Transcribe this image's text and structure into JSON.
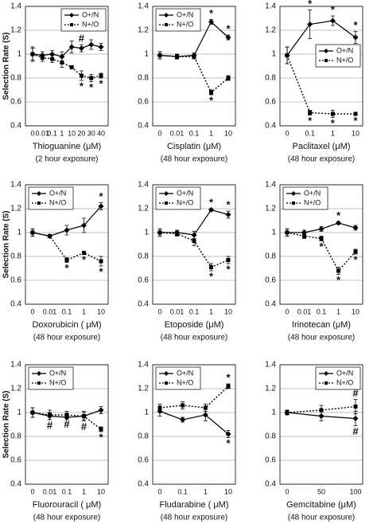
{
  "chart_data": [
    {
      "type": "line",
      "ylabel": "Selection Rate (S)",
      "xlabel": "Thioguanine (μM)",
      "subtitle": "(2 hour exposure)",
      "categories": [
        "0",
        "0.01",
        "0.1",
        "1",
        "10",
        "20",
        "30",
        "40"
      ],
      "ylim": [
        0.4,
        1.4
      ],
      "yticks": [
        0.4,
        0.6,
        0.8,
        1,
        1.2,
        1.4
      ],
      "grid": true,
      "legend": "upper right",
      "series": [
        {
          "name": "O+/N",
          "color": "#000000",
          "values": [
            1.0,
            0.99,
            1.0,
            0.98,
            1.06,
            1.05,
            1.08,
            1.06
          ],
          "errors": [
            0.06,
            0.03,
            0.03,
            0.04,
            0.05,
            0.03,
            0.04,
            0.03
          ],
          "flags": [
            null,
            null,
            null,
            null,
            null,
            "#",
            null,
            null
          ]
        },
        {
          "name": "N+/O",
          "color": "#000000",
          "values": [
            1.0,
            0.97,
            0.96,
            0.93,
            0.89,
            0.82,
            0.8,
            0.82
          ],
          "errors": [
            0.05,
            0.03,
            0.03,
            0.04,
            0.01,
            0.04,
            0.03,
            0.02
          ],
          "flags": [
            null,
            null,
            null,
            null,
            null,
            "*",
            "*",
            "*"
          ]
        }
      ]
    },
    {
      "type": "line",
      "xlabel": "Cisplatin (μM)",
      "subtitle": "(48 hour exposure)",
      "categories": [
        "0",
        "0.01",
        "0.1",
        "1",
        "10"
      ],
      "ylim": [
        0.4,
        1.4
      ],
      "yticks": [
        0.4,
        0.6,
        0.8,
        1,
        1.2,
        1.4
      ],
      "grid": true,
      "legend": "upper left",
      "series": [
        {
          "name": "O+/N",
          "color": "#000000",
          "values": [
            0.99,
            0.98,
            0.99,
            1.27,
            1.14
          ],
          "errors": [
            0.03,
            0.02,
            0.02,
            0.02,
            0.02
          ],
          "flags": [
            null,
            null,
            null,
            "*",
            "*"
          ]
        },
        {
          "name": "N+/O",
          "color": "#000000",
          "values": [
            0.99,
            0.98,
            0.98,
            0.68,
            0.8
          ],
          "errors": [
            0.03,
            0.02,
            0.02,
            0.02,
            0.02
          ],
          "flags": [
            null,
            null,
            null,
            "*",
            null
          ]
        }
      ]
    },
    {
      "type": "line",
      "xlabel": "Paclitaxel (μM)",
      "subtitle": "(48 hour exposure)",
      "categories": [
        "0",
        "0.1",
        "1",
        "10"
      ],
      "ylim": [
        0.4,
        1.4
      ],
      "yticks": [
        0.4,
        0.6,
        0.8,
        1,
        1.2,
        1.4
      ],
      "grid": true,
      "legend": "center right",
      "series": [
        {
          "name": "O+/N",
          "color": "#000000",
          "values": [
            0.99,
            1.25,
            1.28,
            1.14
          ],
          "errors": [
            0.07,
            0.12,
            0.04,
            0.05
          ],
          "flags": [
            null,
            "*",
            "*",
            "*"
          ]
        },
        {
          "name": "N+/O",
          "color": "#000000",
          "values": [
            0.99,
            0.51,
            0.5,
            0.5
          ],
          "errors": [
            0.07,
            0.02,
            0.03,
            0.01
          ],
          "flags": [
            null,
            "*",
            "*",
            "*"
          ]
        }
      ]
    },
    {
      "type": "line",
      "ylabel": "Selection Rate (S)",
      "xlabel": "Doxorubicin ( μM)",
      "subtitle": "(48 hour exposure)",
      "categories": [
        "0",
        "0.01",
        "0.1",
        "1",
        "10"
      ],
      "ylim": [
        0.4,
        1.4
      ],
      "yticks": [
        0.4,
        0.6,
        0.8,
        1,
        1.2,
        1.4
      ],
      "grid": true,
      "legend": "upper left",
      "series": [
        {
          "name": "O+/N",
          "color": "#000000",
          "values": [
            1.0,
            0.97,
            1.02,
            1.06,
            1.22
          ],
          "errors": [
            0.03,
            0.01,
            0.04,
            0.06,
            0.03
          ],
          "flags": [
            null,
            null,
            null,
            null,
            "*"
          ]
        },
        {
          "name": "N+/O",
          "color": "#000000",
          "values": [
            1.0,
            0.97,
            0.77,
            0.83,
            0.76
          ],
          "errors": [
            0.03,
            0.01,
            0.02,
            0.01,
            0.04
          ],
          "flags": [
            null,
            null,
            "*",
            "*",
            "*"
          ]
        }
      ]
    },
    {
      "type": "line",
      "xlabel": "Etoposide (μM)",
      "subtitle": "(48 hour exposure)",
      "categories": [
        "0",
        "0.01",
        "0.1",
        "1",
        "10"
      ],
      "ylim": [
        0.4,
        1.4
      ],
      "yticks": [
        0.4,
        0.6,
        0.8,
        1,
        1.2,
        1.4
      ],
      "grid": true,
      "legend": "upper left",
      "series": [
        {
          "name": "O+/N",
          "color": "#000000",
          "values": [
            1.0,
            1.0,
            0.98,
            1.19,
            1.15
          ],
          "errors": [
            0.03,
            0.02,
            0.03,
            0.01,
            0.03
          ],
          "flags": [
            null,
            null,
            null,
            "*",
            "*"
          ]
        },
        {
          "name": "N+/O",
          "color": "#000000",
          "values": [
            1.0,
            0.99,
            0.93,
            0.71,
            0.77
          ],
          "errors": [
            0.03,
            0.02,
            0.04,
            0.03,
            0.03
          ],
          "flags": [
            null,
            null,
            null,
            "*",
            "*"
          ]
        }
      ]
    },
    {
      "type": "line",
      "xlabel": "Irinotecan (μM)",
      "subtitle": "(48 hour exposure)",
      "categories": [
        "0",
        "0.01",
        "0.1",
        "1",
        "10"
      ],
      "ylim": [
        0.4,
        1.4
      ],
      "yticks": [
        0.4,
        0.6,
        0.8,
        1,
        1.2,
        1.4
      ],
      "grid": true,
      "legend": "upper left",
      "series": [
        {
          "name": "O+/N",
          "color": "#000000",
          "values": [
            1.0,
            1.0,
            1.03,
            1.08,
            1.04
          ],
          "errors": [
            0.03,
            0.02,
            0.02,
            0.01,
            0.02
          ],
          "flags": [
            null,
            null,
            null,
            "*",
            null
          ]
        },
        {
          "name": "N+/O",
          "color": "#000000",
          "values": [
            1.0,
            0.97,
            0.95,
            0.68,
            0.84
          ],
          "errors": [
            0.03,
            0.02,
            0.02,
            0.03,
            0.02
          ],
          "flags": [
            null,
            null,
            "*",
            "*",
            "*"
          ]
        }
      ]
    },
    {
      "type": "line",
      "ylabel": "Selection Rate (S)",
      "xlabel": "Fluorouracil ( μM)",
      "subtitle": "(48 hour exposure)",
      "categories": [
        "0",
        "0.01",
        "0.1",
        "1",
        "10"
      ],
      "ylim": [
        0.4,
        1.4
      ],
      "yticks": [
        0.4,
        0.6,
        0.8,
        1,
        1.2,
        1.4
      ],
      "grid": true,
      "legend": "upper left",
      "series": [
        {
          "name": "O+/N",
          "color": "#000000",
          "values": [
            1.0,
            0.97,
            0.96,
            0.97,
            1.02
          ],
          "errors": [
            0.04,
            0.03,
            0.02,
            0.03,
            0.03
          ],
          "flags": [
            null,
            null,
            null,
            null,
            null
          ]
        },
        {
          "name": "N+/O",
          "color": "#000000",
          "values": [
            1.0,
            0.98,
            0.98,
            0.97,
            0.86
          ],
          "errors": [
            0.04,
            0.04,
            0.03,
            0.04,
            0.02
          ],
          "flags": [
            null,
            "#",
            "#",
            "#",
            "*"
          ]
        }
      ]
    },
    {
      "type": "line",
      "xlabel": "Fludarabine ( μM)",
      "subtitle": "(48 hour exposure)",
      "categories": [
        "0",
        "0.1",
        "1",
        "10"
      ],
      "ylim": [
        0.4,
        1.4
      ],
      "yticks": [
        0.4,
        0.6,
        0.8,
        1,
        1.2,
        1.4
      ],
      "grid": true,
      "legend": "upper left",
      "series": [
        {
          "name": "O+/N",
          "color": "#000000",
          "values": [
            1.01,
            0.94,
            0.98,
            0.82
          ],
          "errors": [
            0.04,
            0.02,
            0.05,
            0.03
          ],
          "flags": [
            null,
            null,
            null,
            "*"
          ]
        },
        {
          "name": "N+/O",
          "color": "#000000",
          "values": [
            1.04,
            1.06,
            1.04,
            1.22
          ],
          "errors": [
            0.03,
            0.03,
            0.03,
            0.02
          ],
          "flags": [
            null,
            null,
            null,
            "*"
          ]
        }
      ]
    },
    {
      "type": "line",
      "xlabel": "Gemcitabine (μM)",
      "subtitle": "(48 hour exposure)",
      "categories": [
        "0",
        "50",
        "100"
      ],
      "ylim": [
        0.4,
        1.4
      ],
      "yticks": [
        0.4,
        0.6,
        0.8,
        1,
        1.2,
        1.4
      ],
      "grid": true,
      "legend": "upper right",
      "series": [
        {
          "name": "O+/N",
          "color": "#000000",
          "values": [
            1.0,
            0.97,
            0.95
          ],
          "errors": [
            0.02,
            0.04,
            0.06
          ],
          "flags": [
            null,
            null,
            "#"
          ]
        },
        {
          "name": "N+/O",
          "color": "#000000",
          "values": [
            1.0,
            1.02,
            1.05
          ],
          "errors": [
            0.02,
            0.04,
            0.06
          ],
          "flags": [
            null,
            null,
            "#"
          ]
        }
      ]
    }
  ]
}
